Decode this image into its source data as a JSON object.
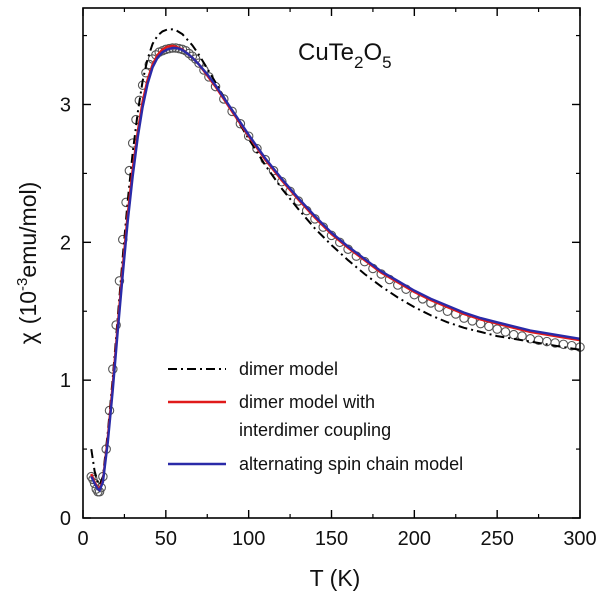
{
  "chart_data": {
    "type": "line",
    "title": "",
    "annotation": {
      "base": "CuTe",
      "sub1": "2",
      "mid": "O",
      "sub2": "5"
    },
    "xlabel": "T (K)",
    "ylabel": {
      "symbol": "χ",
      "open": "(10",
      "exponent": "-3",
      "unit": "emu/mol)"
    },
    "xlim": [
      0,
      300
    ],
    "ylim": [
      0,
      3.7
    ],
    "xticks": [
      0,
      50,
      100,
      150,
      200,
      250,
      300
    ],
    "xtick_labels": [
      "0",
      "50",
      "100",
      "150",
      "200",
      "250",
      "300"
    ],
    "yticks": [
      0,
      1,
      2,
      3
    ],
    "ytick_labels": [
      "0",
      "1",
      "2",
      "3"
    ],
    "grid": false,
    "legend_position": "bottom-center",
    "data_points": {
      "name": "",
      "color": "#555555",
      "x": [
        5,
        6,
        7,
        8,
        9,
        10,
        11,
        12,
        14,
        16,
        18,
        20,
        22,
        24,
        26,
        28,
        30,
        32,
        34,
        36,
        38,
        40,
        42,
        44,
        46,
        48,
        50,
        52,
        54,
        56,
        58,
        60,
        62,
        64,
        66,
        68,
        70,
        73,
        76,
        80,
        85,
        90,
        95,
        100,
        105,
        110,
        115,
        120,
        125,
        130,
        135,
        140,
        145,
        150,
        155,
        160,
        165,
        170,
        175,
        180,
        185,
        190,
        195,
        200,
        205,
        210,
        215,
        220,
        225,
        230,
        235,
        240,
        245,
        250,
        255,
        260,
        265,
        270,
        275,
        280,
        285,
        290,
        295,
        300
      ],
      "y": [
        0.3,
        0.28,
        0.25,
        0.21,
        0.19,
        0.19,
        0.22,
        0.3,
        0.5,
        0.78,
        1.08,
        1.4,
        1.72,
        2.02,
        2.29,
        2.52,
        2.72,
        2.89,
        3.03,
        3.14,
        3.23,
        3.29,
        3.33,
        3.36,
        3.38,
        3.39,
        3.4,
        3.405,
        3.41,
        3.41,
        3.405,
        3.4,
        3.39,
        3.37,
        3.35,
        3.33,
        3.3,
        3.25,
        3.2,
        3.13,
        3.04,
        2.95,
        2.86,
        2.77,
        2.68,
        2.6,
        2.52,
        2.44,
        2.37,
        2.3,
        2.23,
        2.17,
        2.11,
        2.05,
        2.0,
        1.95,
        1.9,
        1.86,
        1.81,
        1.77,
        1.73,
        1.69,
        1.66,
        1.62,
        1.59,
        1.56,
        1.53,
        1.5,
        1.48,
        1.45,
        1.43,
        1.41,
        1.39,
        1.37,
        1.35,
        1.33,
        1.32,
        1.3,
        1.29,
        1.28,
        1.27,
        1.26,
        1.25,
        1.24
      ]
    },
    "series": [
      {
        "name": "dimer model",
        "color": "#000000",
        "dash": "dashdot",
        "x": [
          5,
          7,
          9,
          10,
          12,
          15,
          18,
          21,
          24,
          27,
          30,
          33,
          36,
          39,
          42,
          45,
          48,
          51,
          54,
          56,
          58,
          60,
          63,
          66,
          70,
          75,
          80,
          90,
          100,
          110,
          120,
          130,
          140,
          150,
          160,
          170,
          180,
          190,
          200,
          210,
          220,
          230,
          240,
          250,
          260,
          270,
          280,
          290,
          300
        ],
        "y": [
          0.5,
          0.34,
          0.26,
          0.24,
          0.3,
          0.62,
          1.02,
          1.46,
          1.9,
          2.3,
          2.65,
          2.94,
          3.17,
          3.33,
          3.44,
          3.5,
          3.53,
          3.545,
          3.545,
          3.54,
          3.525,
          3.51,
          3.47,
          3.43,
          3.36,
          3.26,
          3.16,
          2.95,
          2.75,
          2.56,
          2.39,
          2.24,
          2.1,
          1.98,
          1.87,
          1.77,
          1.68,
          1.6,
          1.53,
          1.47,
          1.42,
          1.38,
          1.35,
          1.32,
          1.3,
          1.28,
          1.26,
          1.24,
          1.22
        ]
      },
      {
        "name": "dimer model with interdimer coupling",
        "color": "#e01a1a",
        "dash": "solid",
        "x": [
          5,
          7,
          9,
          10,
          12,
          15,
          18,
          21,
          24,
          27,
          30,
          33,
          36,
          39,
          42,
          45,
          48,
          51,
          54,
          56,
          58,
          60,
          63,
          66,
          70,
          75,
          80,
          90,
          100,
          110,
          120,
          130,
          140,
          150,
          160,
          170,
          180,
          190,
          200,
          210,
          220,
          230,
          240,
          250,
          260,
          270,
          280,
          290,
          300
        ],
        "y": [
          0.32,
          0.26,
          0.22,
          0.21,
          0.27,
          0.58,
          0.97,
          1.4,
          1.82,
          2.2,
          2.53,
          2.8,
          3.02,
          3.18,
          3.29,
          3.36,
          3.4,
          3.42,
          3.425,
          3.42,
          3.41,
          3.4,
          3.37,
          3.34,
          3.29,
          3.21,
          3.13,
          2.95,
          2.77,
          2.6,
          2.45,
          2.31,
          2.18,
          2.06,
          1.96,
          1.87,
          1.78,
          1.71,
          1.64,
          1.58,
          1.53,
          1.48,
          1.44,
          1.41,
          1.38,
          1.35,
          1.33,
          1.31,
          1.29
        ]
      },
      {
        "name": "alternating spin chain model",
        "color": "#2a2aa8",
        "dash": "solid",
        "x": [
          5,
          7,
          9,
          10,
          12,
          15,
          18,
          21,
          24,
          27,
          30,
          33,
          36,
          39,
          42,
          45,
          48,
          51,
          54,
          56,
          58,
          60,
          63,
          66,
          70,
          75,
          80,
          90,
          100,
          110,
          120,
          130,
          140,
          150,
          160,
          170,
          180,
          190,
          200,
          210,
          220,
          230,
          240,
          250,
          260,
          270,
          280,
          290,
          300
        ],
        "y": [
          0.3,
          0.25,
          0.21,
          0.2,
          0.26,
          0.55,
          0.93,
          1.36,
          1.77,
          2.15,
          2.48,
          2.76,
          2.98,
          3.15,
          3.27,
          3.34,
          3.38,
          3.4,
          3.41,
          3.41,
          3.405,
          3.395,
          3.37,
          3.34,
          3.29,
          3.22,
          3.14,
          2.96,
          2.78,
          2.61,
          2.46,
          2.32,
          2.19,
          2.07,
          1.97,
          1.88,
          1.79,
          1.72,
          1.65,
          1.59,
          1.54,
          1.49,
          1.45,
          1.42,
          1.39,
          1.36,
          1.34,
          1.32,
          1.3
        ]
      }
    ]
  }
}
